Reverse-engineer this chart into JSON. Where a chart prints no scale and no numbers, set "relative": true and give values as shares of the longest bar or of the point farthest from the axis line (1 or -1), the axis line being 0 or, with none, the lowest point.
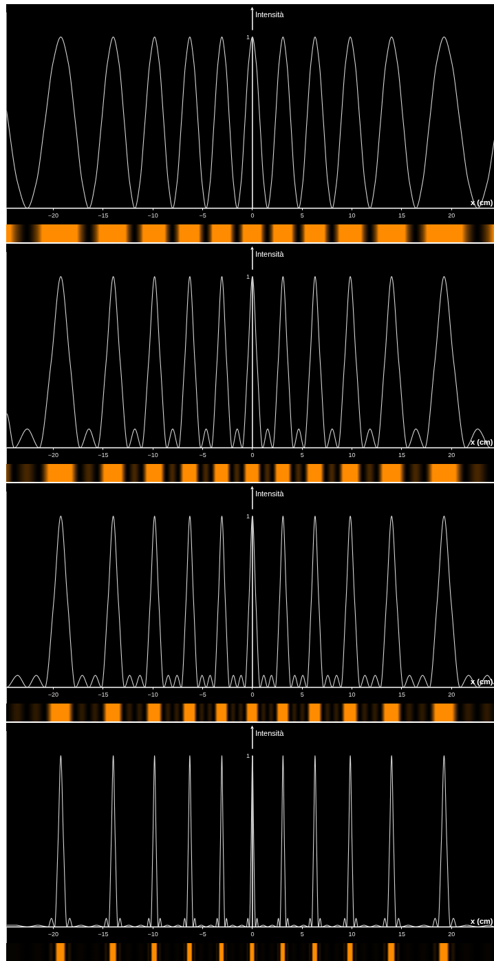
{
  "chart_data": [
    {
      "type": "line",
      "relative": true,
      "xlabel": "x (cm)",
      "ylabel": "Intensità",
      "annotations": [
        "1"
      ],
      "xlim": [
        -24.7,
        24.3
      ],
      "xticks": [
        {
          "value": -20,
          "label": "−20"
        },
        {
          "value": -15,
          "label": "−15"
        },
        {
          "value": -10,
          "label": "−10"
        },
        {
          "value": -5,
          "label": "−5"
        },
        0,
        5,
        10,
        15,
        20
      ],
      "x": [
        -24.7,
        -23.59,
        -22.62,
        -21.71,
        -20.85,
        -20.03,
        -19.25,
        -18.5,
        -17.78,
        -17.09,
        -16.42,
        -15.78,
        -15.16,
        -14.56,
        -13.98,
        -13.41,
        -12.86,
        -12.33,
        -11.81,
        -11.3,
        -10.8,
        -10.31,
        -9.83,
        -9.36,
        -8.9,
        -8.45,
        -8.01,
        -7.57,
        -7.14,
        -6.71,
        -6.29,
        -5.88,
        -5.46,
        -5.06,
        -4.65,
        -4.25,
        -3.86,
        -3.46,
        -3.07,
        -2.68,
        -2.3,
        -1.91,
        -1.53,
        -1.14,
        -0.76,
        -0.38,
        0,
        0.38,
        0.76,
        1.14,
        1.53,
        1.91,
        2.3,
        2.68,
        3.07,
        3.46,
        3.86,
        4.25,
        4.65,
        5.06,
        5.46,
        5.88,
        6.29,
        6.71,
        7.14,
        7.57,
        8.01,
        8.45,
        8.9,
        9.36,
        9.83,
        10.31,
        10.8,
        11.3,
        11.81,
        12.33,
        12.86,
        13.41,
        13.98,
        14.56,
        15.16,
        15.78,
        16.42,
        17.09,
        17.78,
        18.5,
        19.25,
        20.03,
        20.85,
        21.71,
        22.62,
        23.59,
        24.3
      ],
      "series": [
        {
          "color": "#d4d4d4",
          "values": [
            0.57,
            0.15,
            0,
            0.15,
            0.5,
            0.85,
            1,
            0.85,
            0.5,
            0.15,
            0,
            0.15,
            0.5,
            0.85,
            1,
            0.85,
            0.5,
            0.15,
            0,
            0.15,
            0.5,
            0.85,
            1,
            0.85,
            0.5,
            0.15,
            0,
            0.15,
            0.5,
            0.85,
            1,
            0.85,
            0.5,
            0.15,
            0,
            0.15,
            0.5,
            0.85,
            1,
            0.85,
            0.5,
            0.15,
            0,
            0.15,
            0.5,
            0.85,
            1,
            0.85,
            0.5,
            0.15,
            0,
            0.15,
            0.5,
            0.85,
            1,
            0.85,
            0.5,
            0.15,
            0,
            0.15,
            0.5,
            0.85,
            1,
            0.85,
            0.5,
            0.15,
            0,
            0.15,
            0.5,
            0.85,
            1,
            0.85,
            0.5,
            0.15,
            0,
            0.15,
            0.5,
            0.85,
            1,
            0.85,
            0.5,
            0.15,
            0,
            0.15,
            0.5,
            0.85,
            1,
            0.85,
            0.5,
            0.15,
            0,
            0.15,
            0.4
          ]
        }
      ]
    },
    {
      "type": "line",
      "relative": true,
      "xlabel": "x (cm)",
      "ylabel": "Intensità",
      "annotations": [
        "1"
      ],
      "xlim": [
        -24.7,
        24.3
      ],
      "xticks": [
        {
          "value": -20,
          "label": "−20"
        },
        {
          "value": -15,
          "label": "−15"
        },
        {
          "value": -10,
          "label": "−10"
        },
        {
          "value": -5,
          "label": "−5"
        },
        0,
        5,
        10,
        15,
        20
      ],
      "x": [
        -24.7,
        -23.92,
        -22.62,
        -21.42,
        -20.22,
        -19.25,
        -18.32,
        -17.31,
        -16.42,
        -15.57,
        -14.7,
        -13.98,
        -13.28,
        -12.5,
        -11.81,
        -11.13,
        -10.43,
        -9.83,
        -9.25,
        -8.6,
        -8.01,
        -7.42,
        -6.81,
        -6.29,
        -5.78,
        -5.19,
        -4.65,
        -4.12,
        -3.56,
        -3.07,
        -2.59,
        -2.04,
        -1.53,
        -1.02,
        -0.47,
        0,
        0.47,
        1.02,
        1.53,
        2.04,
        2.59,
        3.07,
        3.56,
        4.12,
        4.65,
        5.19,
        5.78,
        6.29,
        6.81,
        7.42,
        8.01,
        8.6,
        9.25,
        9.83,
        10.43,
        11.13,
        11.81,
        12.5,
        13.28,
        13.98,
        14.7,
        15.57,
        16.42,
        17.31,
        18.32,
        19.25,
        20.22,
        21.42,
        22.62,
        23.92
      ],
      "series": [
        {
          "color": "#d4d4d4",
          "values": [
            0.2,
            0,
            0.11,
            0,
            0.5,
            1,
            0.5,
            0,
            0.11,
            0,
            0.5,
            1,
            0.5,
            0,
            0.11,
            0,
            0.5,
            1,
            0.5,
            0,
            0.11,
            0,
            0.5,
            1,
            0.5,
            0,
            0.11,
            0,
            0.5,
            1,
            0.5,
            0,
            0.11,
            0,
            0.5,
            1,
            0.5,
            0,
            0.11,
            0,
            0.5,
            1,
            0.5,
            0,
            0.11,
            0,
            0.5,
            1,
            0.5,
            0,
            0.11,
            0,
            0.5,
            1,
            0.5,
            0,
            0.11,
            0,
            0.5,
            1,
            0.5,
            0,
            0.11,
            0,
            0.5,
            1,
            0.5,
            0,
            0.11,
            0
          ]
        }
      ]
    },
    {
      "type": "line",
      "relative": true,
      "xlabel": "x (cm)",
      "ylabel": "Intensità",
      "annotations": [
        "1"
      ],
      "xlim": [
        -24.7,
        24.3
      ],
      "xticks": [
        {
          "value": -20,
          "label": "−20"
        },
        {
          "value": -15,
          "label": "−15"
        },
        {
          "value": -10,
          "label": "−10"
        },
        {
          "value": -5,
          "label": "−5"
        },
        0,
        5,
        10,
        15,
        20
      ],
      "x": [
        -24.7,
        -23.59,
        -22.62,
        -21.71,
        -20.85,
        -19.96,
        -19.25,
        -18.56,
        -17.78,
        -17.09,
        -16.42,
        -15.78,
        -15.16,
        -14.51,
        -13.98,
        -13.46,
        -12.86,
        -12.33,
        -11.81,
        -11.3,
        -10.8,
        -10.27,
        -9.83,
        -9.4,
        -8.9,
        -8.45,
        -8.01,
        -7.57,
        -7.14,
        -6.67,
        -6.29,
        -5.91,
        -5.46,
        -5.06,
        -4.65,
        -4.25,
        -3.86,
        -3.43,
        -3.07,
        -2.72,
        -2.3,
        -1.91,
        -1.53,
        -1.14,
        -0.76,
        -0.35,
        0,
        0.35,
        0.76,
        1.14,
        1.53,
        1.91,
        2.3,
        2.72,
        3.07,
        3.43,
        3.86,
        4.25,
        4.65,
        5.06,
        5.46,
        5.91,
        6.29,
        6.67,
        7.14,
        7.57,
        8.01,
        8.45,
        8.9,
        9.4,
        9.83,
        10.27,
        10.8,
        11.3,
        11.81,
        12.33,
        12.86,
        13.46,
        13.98,
        14.51,
        15.16,
        15.78,
        16.42,
        17.09,
        17.78,
        18.56,
        19.25,
        19.96,
        20.85,
        21.71,
        22.62,
        23.59,
        24.3
      ],
      "series": [
        {
          "color": "#d4d4d4",
          "values": [
            0,
            0.07,
            0,
            0.07,
            0,
            0.5,
            1,
            0.5,
            0,
            0.07,
            0,
            0.07,
            0,
            0.5,
            1,
            0.5,
            0,
            0.07,
            0,
            0.07,
            0,
            0.5,
            1,
            0.5,
            0,
            0.07,
            0,
            0.07,
            0,
            0.5,
            1,
            0.5,
            0,
            0.07,
            0,
            0.07,
            0,
            0.5,
            1,
            0.5,
            0,
            0.07,
            0,
            0.07,
            0,
            0.5,
            1,
            0.5,
            0,
            0.07,
            0,
            0.07,
            0,
            0.5,
            1,
            0.5,
            0,
            0.07,
            0,
            0.07,
            0,
            0.5,
            1,
            0.5,
            0,
            0.07,
            0,
            0.07,
            0,
            0.5,
            1,
            0.5,
            0,
            0.07,
            0,
            0.07,
            0,
            0.5,
            1,
            0.5,
            0,
            0.07,
            0,
            0.07,
            0,
            0.5,
            1,
            0.5,
            0,
            0.07,
            0,
            0.07,
            0.02
          ]
        }
      ]
    },
    {
      "type": "line",
      "relative": true,
      "xlabel": "x (cm)",
      "ylabel": "Intensità",
      "annotations": [
        "1"
      ],
      "xlim": [
        -24.7,
        24.3
      ],
      "xticks": [
        {
          "value": -20,
          "label": "−20"
        },
        {
          "value": -15,
          "label": "−15"
        },
        {
          "value": -10,
          "label": "−10"
        },
        {
          "value": -5,
          "label": "−5"
        },
        0,
        5,
        10,
        15,
        20
      ],
      "x": [
        -24.7,
        -23.79,
        -22.62,
        -21.54,
        -20.52,
        -20.19,
        -19.87,
        -19.52,
        -19.25,
        -18.98,
        -18.64,
        -18.35,
        -18.06,
        -17.22,
        -16.42,
        -15.65,
        -14.92,
        -14.68,
        -14.44,
        -14.18,
        -13.98,
        -13.78,
        -13.52,
        -13.3,
        -13.08,
        -12.43,
        -11.81,
        -11.2,
        -10.6,
        -10.41,
        -10.21,
        -10.0,
        -9.83,
        -9.67,
        -9.46,
        -9.27,
        -9.09,
        -8.54,
        -8.01,
        -7.48,
        -6.97,
        -6.8,
        -6.63,
        -6.44,
        -6.29,
        -6.14,
        -5.96,
        -5.79,
        -5.63,
        -5.14,
        -4.65,
        -4.17,
        -3.7,
        -3.54,
        -3.39,
        -3.21,
        -3.07,
        -2.94,
        -2.76,
        -2.61,
        -2.45,
        -1.99,
        -1.53,
        -1.07,
        -0.61,
        -0.46,
        -0.31,
        -0.13,
        0,
        0.13,
        0.31,
        0.46,
        0.61,
        1.07,
        1.53,
        1.99,
        2.45,
        2.61,
        2.76,
        2.94,
        3.07,
        3.21,
        3.39,
        3.54,
        3.7,
        4.17,
        4.65,
        5.14,
        5.63,
        5.79,
        5.96,
        6.14,
        6.29,
        6.44,
        6.63,
        6.8,
        6.97,
        7.48,
        8.01,
        8.54,
        9.09,
        9.27,
        9.46,
        9.67,
        9.83,
        10.0,
        10.21,
        10.41,
        10.6,
        11.2,
        11.81,
        12.43,
        13.08,
        13.3,
        13.52,
        13.78,
        13.98,
        14.18,
        14.44,
        14.68,
        14.92,
        15.65,
        16.42,
        17.22,
        18.06,
        18.35,
        18.64,
        18.98,
        19.25,
        19.52,
        19.87,
        20.19,
        20.52,
        21.54,
        22.62,
        23.79,
        24.3
      ],
      "series": [
        {
          "color": "#d4d4d4",
          "values": [
            0.01,
            0.01,
            0,
            0.01,
            0,
            0.05,
            0,
            0.5,
            1,
            0.5,
            0,
            0.05,
            0,
            0.01,
            0,
            0.01,
            0,
            0.05,
            0,
            0.5,
            1,
            0.5,
            0,
            0.05,
            0,
            0.01,
            0,
            0.01,
            0,
            0.05,
            0,
            0.5,
            1,
            0.5,
            0,
            0.05,
            0,
            0.01,
            0,
            0.01,
            0,
            0.05,
            0,
            0.5,
            1,
            0.5,
            0,
            0.05,
            0,
            0.01,
            0,
            0.01,
            0,
            0.05,
            0,
            0.5,
            1,
            0.5,
            0,
            0.05,
            0,
            0.01,
            0,
            0.01,
            0,
            0.05,
            0,
            0.5,
            1,
            0.5,
            0,
            0.05,
            0,
            0.01,
            0,
            0.01,
            0,
            0.05,
            0,
            0.5,
            1,
            0.5,
            0,
            0.05,
            0,
            0.01,
            0,
            0.01,
            0,
            0.05,
            0,
            0.5,
            1,
            0.5,
            0,
            0.05,
            0,
            0.01,
            0,
            0.01,
            0,
            0.05,
            0,
            0.5,
            1,
            0.5,
            0,
            0.05,
            0,
            0.01,
            0,
            0.01,
            0,
            0.05,
            0,
            0.5,
            1,
            0.5,
            0,
            0.05,
            0,
            0.01,
            0,
            0.01,
            0,
            0.05,
            0,
            0.5,
            1,
            0.5,
            0,
            0.05,
            0,
            0.01,
            0,
            0.01,
            0
          ]
        }
      ]
    }
  ]
}
